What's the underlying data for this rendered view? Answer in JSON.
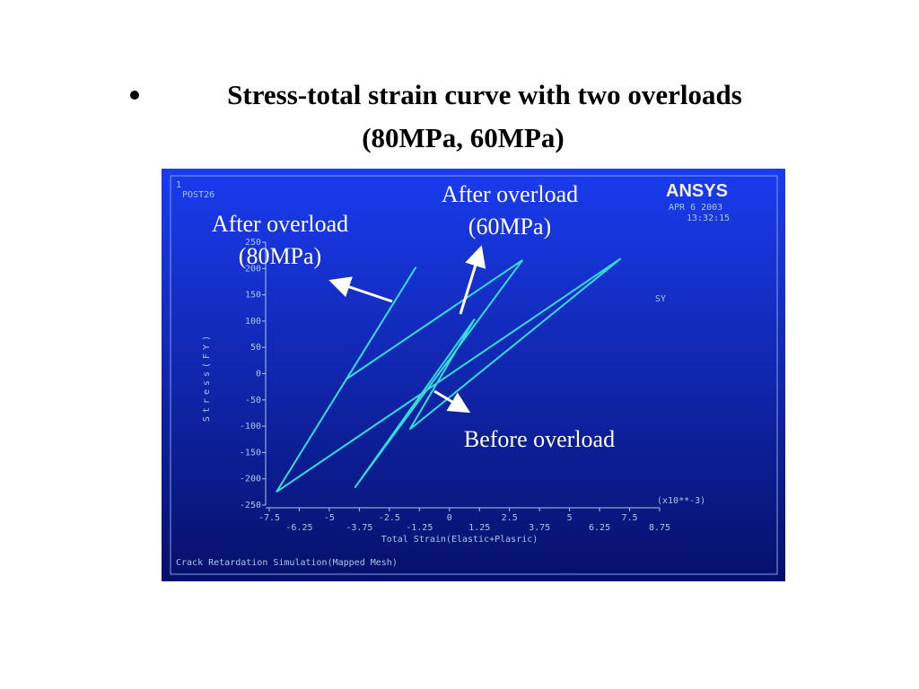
{
  "slide": {
    "title_lines": [
      "Stress-total strain curve with two overloads",
      "(80MPa, 60MPa)"
    ]
  },
  "chart_data": {
    "type": "line",
    "window_number": "1",
    "plot_name": "POST26",
    "logo": "ANSYS",
    "date": "APR  6 2003",
    "time": "13:32:15",
    "x_label": "Total Strain(Elastic+Plasric)",
    "x_multiplier": "(x10**-3)",
    "y_label": "Stress(FY)",
    "footer": "Crack Retardation Simulation(Mapped Mesh)",
    "x": [
      -7.2,
      -1.39,
      -4.28,
      3.04,
      -3.94,
      1.05,
      -1.65,
      7.13,
      -7.2
    ],
    "series": [
      {
        "name": "SY",
        "color": "#33dddd",
        "values": [
          -225,
          203,
          -10,
          216,
          -217,
          104,
          -106,
          219,
          -225
        ]
      }
    ],
    "xlim": [
      -7.5,
      8.75
    ],
    "ylim": [
      -250,
      250
    ],
    "xticks": [
      -7.5,
      -6.25,
      -5,
      -3.75,
      -2.5,
      -1.25,
      0,
      1.25,
      2.5,
      3.75,
      5,
      6.25,
      7.5,
      8.75
    ],
    "yticks": [
      250,
      200,
      150,
      100,
      50,
      0,
      -50,
      -100,
      -150,
      -200,
      -250
    ],
    "annotations": [
      {
        "lines": [
          "After overload",
          "(80MPa)"
        ]
      },
      {
        "lines": [
          "After overload",
          "(60MPa)"
        ]
      },
      {
        "lines": [
          "Before overload"
        ]
      }
    ]
  }
}
